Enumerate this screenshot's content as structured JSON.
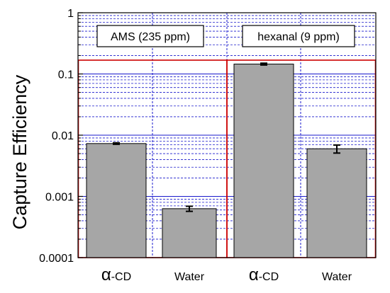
{
  "chart_data": {
    "type": "bar",
    "ylabel": "Capture Efficiency",
    "y_scale": "log",
    "ylim": [
      0.0001,
      1
    ],
    "y_tick_labels": [
      "1",
      "0.1",
      "0.01",
      "0.001",
      "0.0001"
    ],
    "y_ticks": [
      1,
      0.1,
      0.01,
      0.001,
      0.0001
    ],
    "grid": true,
    "groups": [
      {
        "label": "AMS (235 ppm)",
        "categories": [
          "α-CD",
          "Water"
        ]
      },
      {
        "label": "hexanal (9 ppm)",
        "categories": [
          "α-CD",
          "Water"
        ]
      }
    ],
    "categories": [
      "α-CD",
      "Water",
      "α-CD",
      "Water"
    ],
    "values": [
      0.0073,
      0.00063,
      0.145,
      0.006
    ],
    "error": [
      0.0002,
      6e-05,
      0.005,
      0.0009
    ],
    "colors": {
      "bar": "#a6a6a6",
      "grid": "#1a1acc",
      "group_frame": "#cc0000"
    }
  }
}
